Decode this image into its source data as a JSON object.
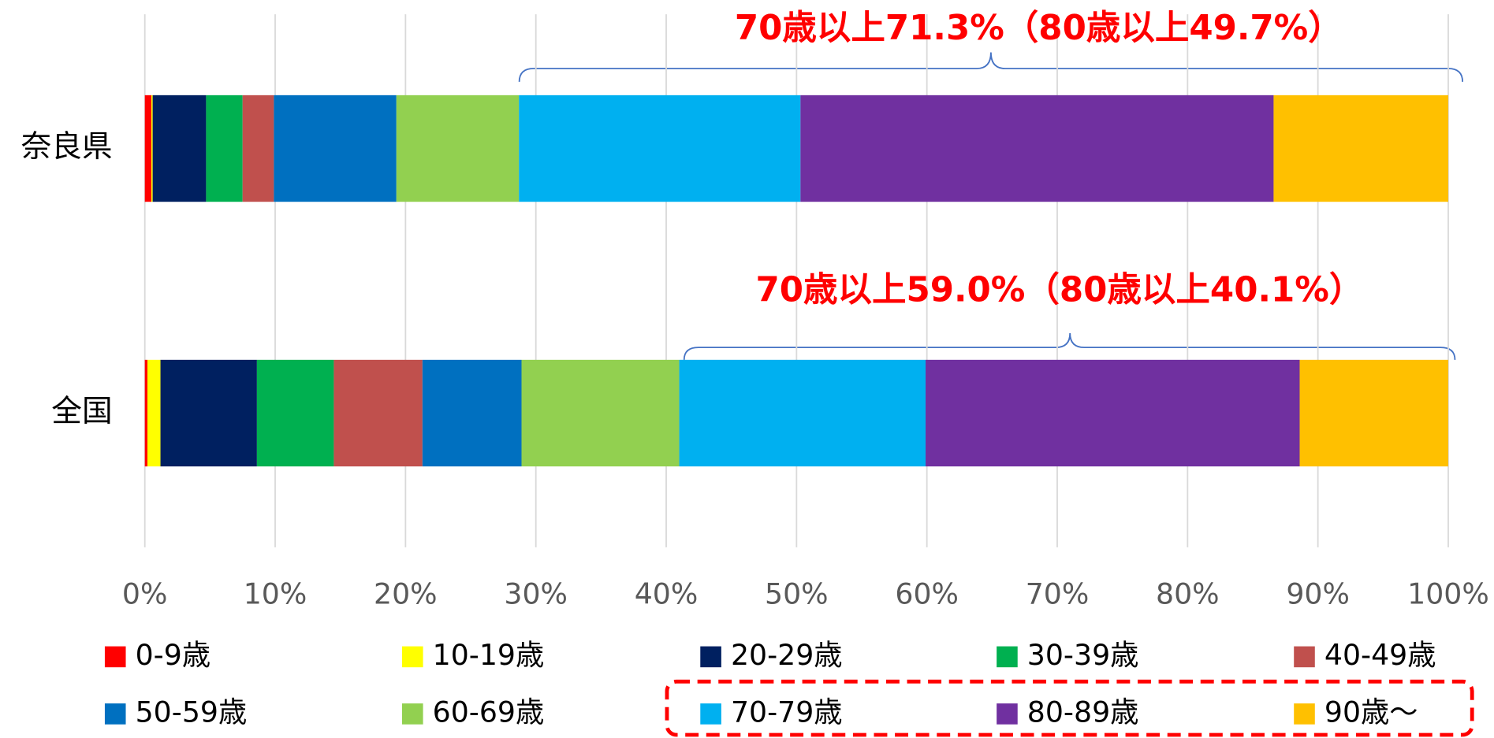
{
  "chart_data": {
    "type": "stacked-bar-horizontal",
    "categories": [
      "奈良県",
      "全国"
    ],
    "series": [
      {
        "name": "0-9歳",
        "color": "#ff0000",
        "values": [
          0.5,
          0.2
        ]
      },
      {
        "name": "10-19歳",
        "color": "#ffff00",
        "values": [
          0.1,
          1.0
        ]
      },
      {
        "name": "20-29歳",
        "color": "#002060",
        "values": [
          4.1,
          7.4
        ]
      },
      {
        "name": "30-39歳",
        "color": "#00b050",
        "values": [
          2.8,
          5.9
        ]
      },
      {
        "name": "40-49歳",
        "color": "#c0504d",
        "values": [
          2.4,
          6.8
        ]
      },
      {
        "name": "50-59歳",
        "color": "#0070c0",
        "values": [
          9.4,
          7.6
        ]
      },
      {
        "name": "60-69歳",
        "color": "#92d050",
        "values": [
          9.4,
          12.1
        ]
      },
      {
        "name": "70-79歳",
        "color": "#00b0f0",
        "values": [
          21.6,
          18.9
        ]
      },
      {
        "name": "80-89歳",
        "color": "#7030a0",
        "values": [
          36.3,
          28.7
        ]
      },
      {
        "name": "90歳～",
        "color": "#ffc000",
        "values": [
          13.4,
          11.4
        ]
      }
    ],
    "xlim": [
      0,
      100
    ],
    "xticks": [
      {
        "value": 0,
        "label": "0%"
      },
      {
        "value": 10,
        "label": "10%"
      },
      {
        "value": 20,
        "label": "20%"
      },
      {
        "value": 30,
        "label": "30%"
      },
      {
        "value": 40,
        "label": "40%"
      },
      {
        "value": 50,
        "label": "50%"
      },
      {
        "value": 60,
        "label": "60%"
      },
      {
        "value": 70,
        "label": "70%"
      },
      {
        "value": 80,
        "label": "80%"
      },
      {
        "value": 90,
        "label": "90%"
      },
      {
        "value": 100,
        "label": "100%"
      }
    ],
    "grid": true,
    "annotations": [
      "70歳以上71.3%（80歳以上49.7%）",
      "70歳以上59.0%（80歳以上40.1%）"
    ]
  }
}
